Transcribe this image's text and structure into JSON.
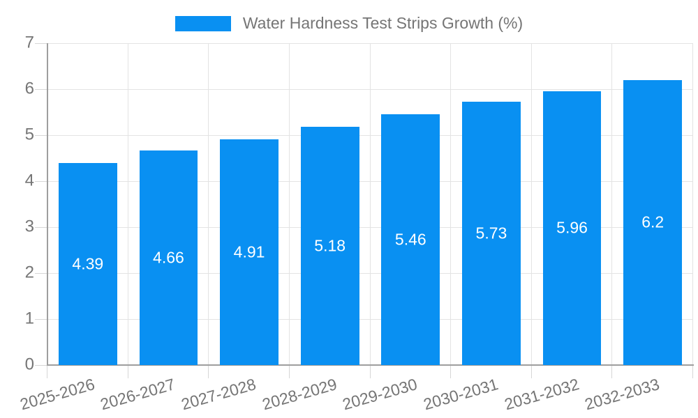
{
  "legend": {
    "label": "Water Hardness Test Strips Growth (%)"
  },
  "chart_data": {
    "type": "bar",
    "title": "Water Hardness Test Strips Growth (%)",
    "categories": [
      "2025-2026",
      "2026-2027",
      "2027-2028",
      "2028-2029",
      "2029-2030",
      "2030-2031",
      "2031-2032",
      "2032-2033"
    ],
    "values": [
      4.39,
      4.66,
      4.91,
      5.18,
      5.46,
      5.73,
      5.96,
      6.2
    ],
    "value_labels": [
      "4.39",
      "4.66",
      "4.91",
      "5.18",
      "5.46",
      "5.73",
      "5.96",
      "6.2"
    ],
    "xlabel": "",
    "ylabel": "",
    "ylim": [
      0,
      7
    ],
    "yticks": [
      0,
      1,
      2,
      3,
      4,
      5,
      6,
      7
    ],
    "grid": true,
    "legend_position": "top",
    "bar_color": "#0990f2",
    "value_label_color": "#ffffff",
    "axis_text_color": "#757575",
    "grid_color": "#e3e3e3",
    "axis_line_color": "#9e9e9e",
    "tick_color": "#d6d6d6",
    "background_color": "#ffffff"
  }
}
